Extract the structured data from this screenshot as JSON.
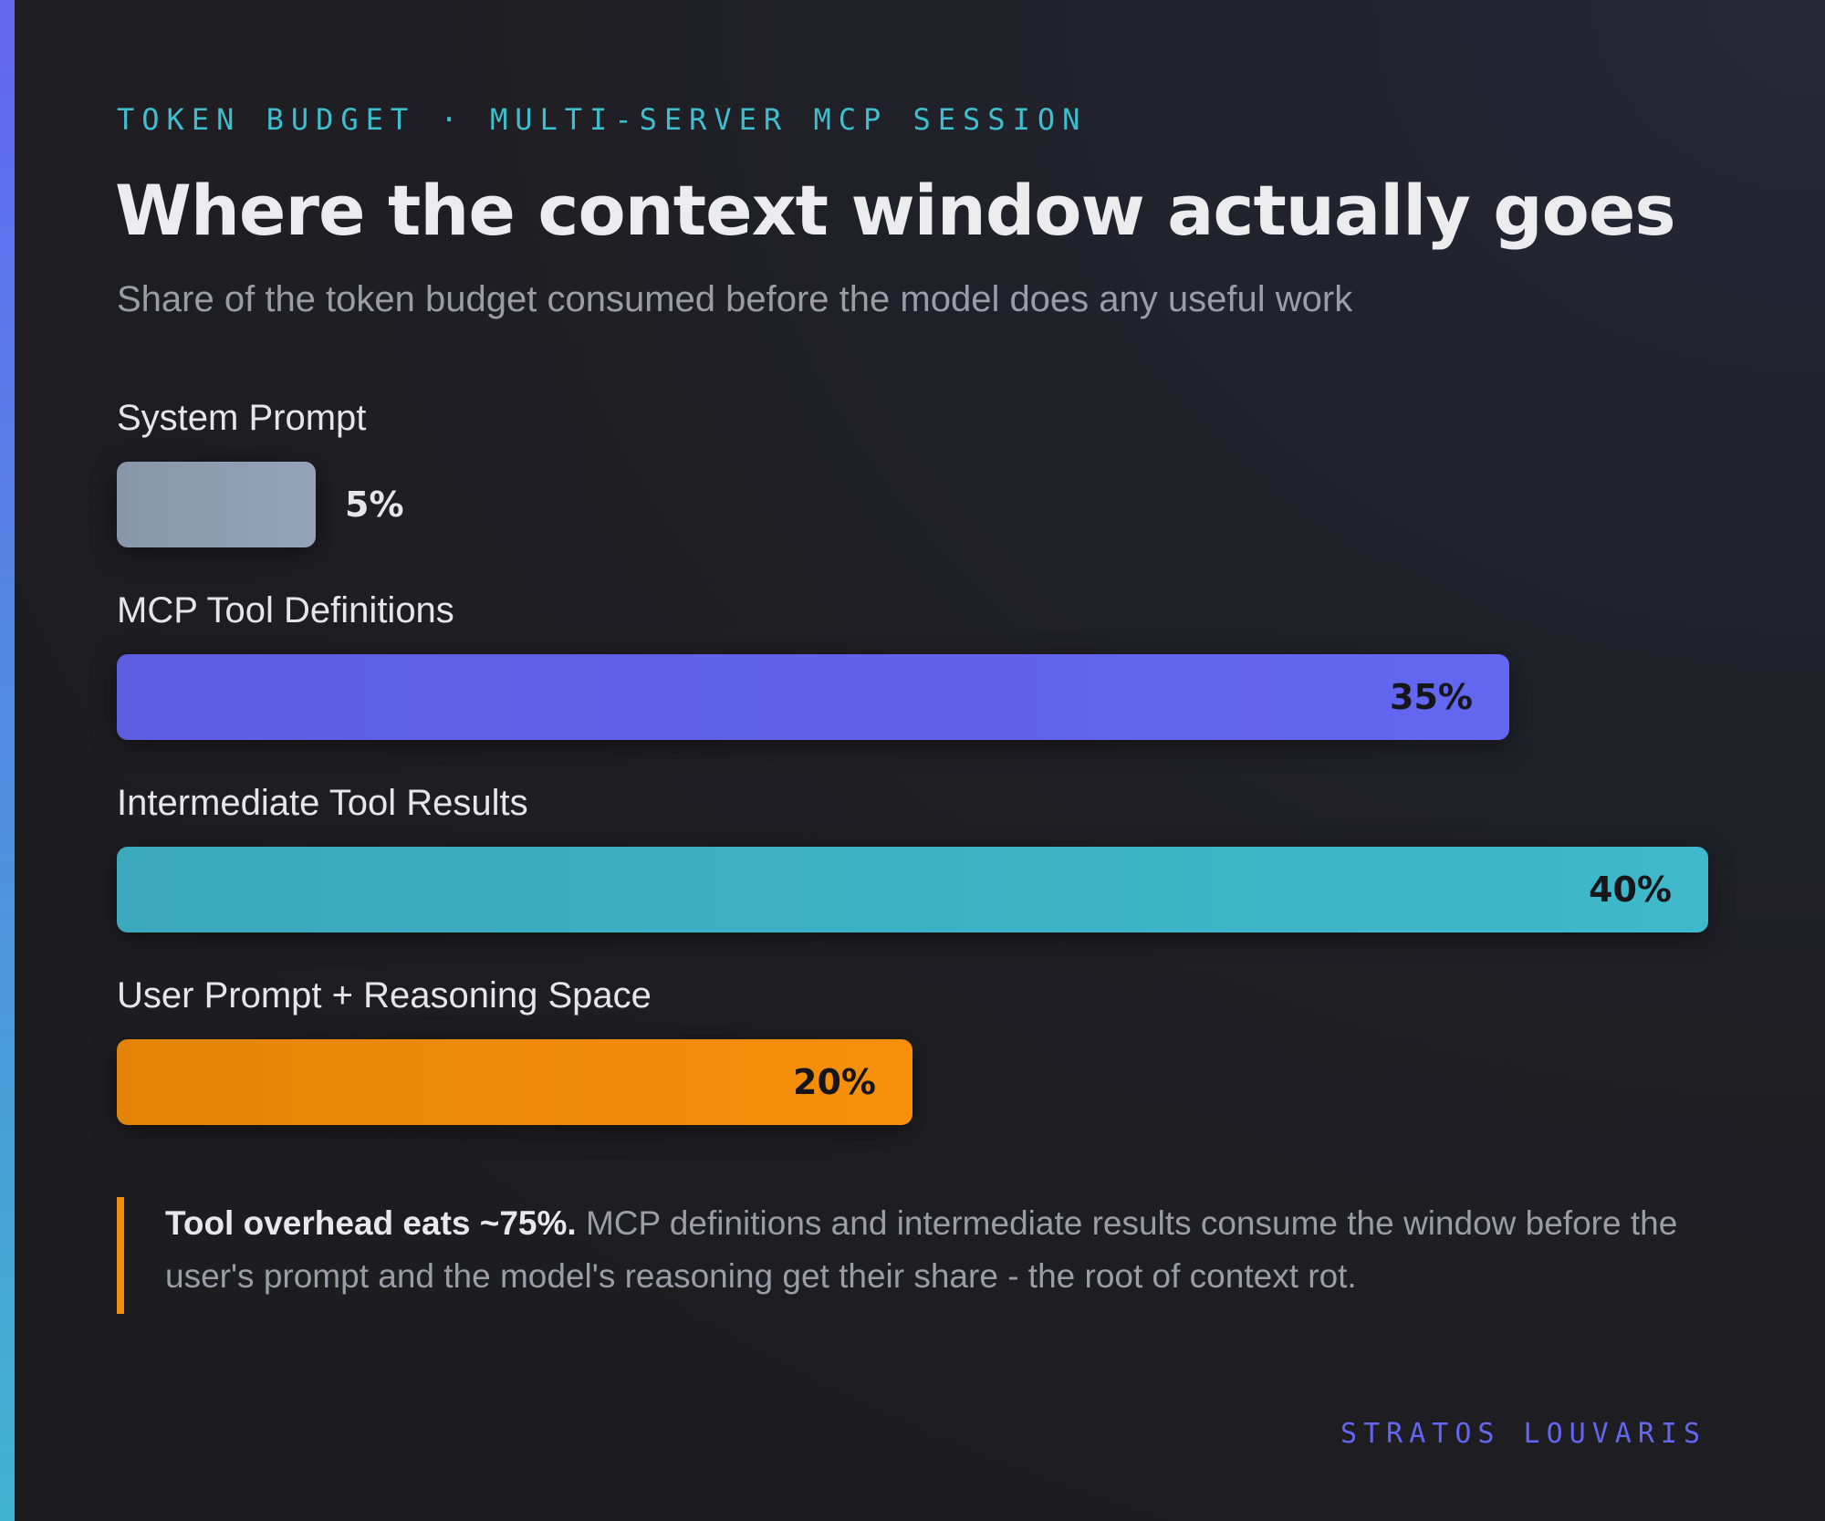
{
  "header": {
    "eyebrow": "TOKEN BUDGET · MULTI-SERVER MCP SESSION",
    "title": "Where the context window actually goes",
    "subtitle": "Share of the token budget consumed before the model does any useful work"
  },
  "chart_data": {
    "type": "bar",
    "orientation": "horizontal",
    "unit": "%",
    "categories": [
      "System Prompt",
      "MCP Tool Definitions",
      "Intermediate Tool Results",
      "User Prompt + Reasoning Space"
    ],
    "values": [
      5,
      35,
      40,
      20
    ],
    "value_labels": [
      "5%",
      "35%",
      "40%",
      "20%"
    ],
    "colors": [
      "#94a3b8",
      "#6366f1",
      "#3fb8cc",
      "#f79009"
    ],
    "xlim": [
      0,
      40
    ],
    "grid": false,
    "legend": "none"
  },
  "callout": {
    "strong": "Tool overhead eats ~75%.",
    "body": " MCP definitions and intermediate results consume the window before the user's prompt and the model's reasoning get their share - the root of context rot.",
    "accent_color": "#f79009"
  },
  "footer": {
    "credit": "STRATOS LOUVARIS"
  }
}
